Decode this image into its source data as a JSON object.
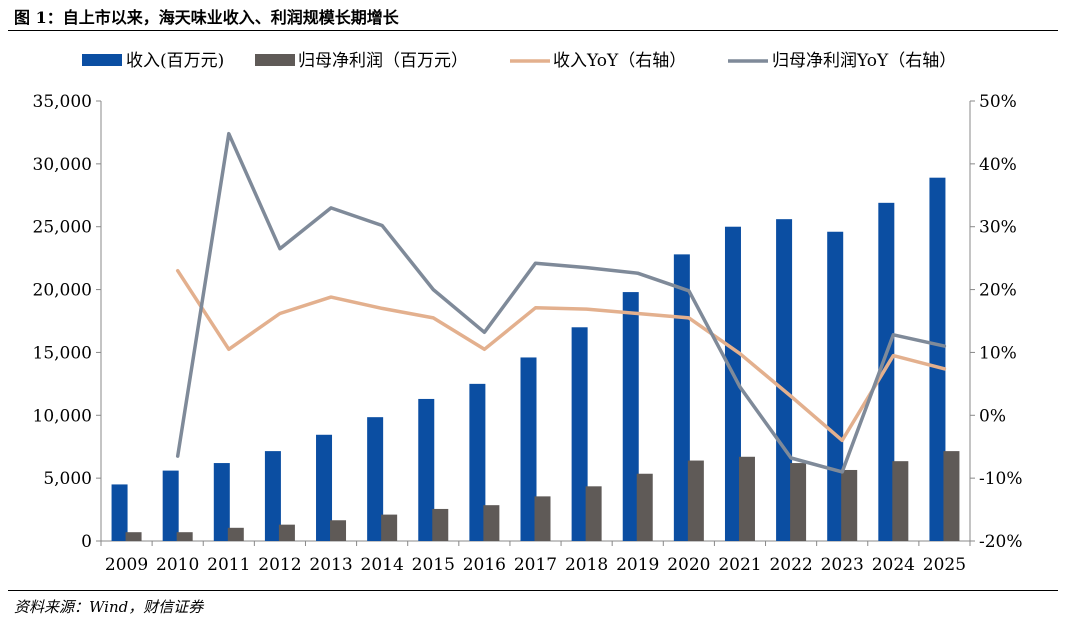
{
  "figure": {
    "title": "图 1：自上市以来，海天味业收入、利润规模长期增长",
    "source": "资料来源：Wind，财信证券"
  },
  "colors": {
    "revenue_bar": "#0b4ea2",
    "profit_bar": "#5f5a57",
    "revenue_yoy": "#e3b08e",
    "profit_yoy": "#7f8a99"
  },
  "chart_data": {
    "type": "bar",
    "categories": [
      "2009",
      "2010",
      "2011",
      "2012",
      "2013",
      "2014",
      "2015",
      "2016",
      "2017",
      "2018",
      "2019",
      "2020",
      "2021",
      "2022",
      "2023",
      "2024",
      "2025"
    ],
    "ylim": [
      0,
      35000
    ],
    "y2lim": [
      -0.2,
      0.5
    ],
    "yticks": [
      "0",
      "5,000",
      "10,000",
      "15,000",
      "20,000",
      "25,000",
      "30,000",
      "35,000"
    ],
    "y2ticks": [
      "-20%",
      "-10%",
      "0%",
      "10%",
      "20%",
      "30%",
      "40%",
      "50%"
    ],
    "legend_position": "top",
    "grid": false,
    "series": [
      {
        "name": "收入(百万元)",
        "kind": "bar",
        "axis": "left",
        "values": [
          4500,
          5600,
          6200,
          7150,
          8450,
          9850,
          11300,
          12500,
          14600,
          17000,
          19800,
          22800,
          25000,
          25600,
          24600,
          26900,
          28900
        ]
      },
      {
        "name": "归母净利润（百万元）",
        "kind": "bar",
        "axis": "left",
        "values": [
          700,
          700,
          1050,
          1300,
          1650,
          2100,
          2550,
          2850,
          3550,
          4350,
          5350,
          6400,
          6700,
          6200,
          5650,
          6350,
          7150
        ]
      },
      {
        "name": "收入YoY（右轴）",
        "kind": "line",
        "axis": "right",
        "values": [
          null,
          0.23,
          0.105,
          0.162,
          0.188,
          0.17,
          0.155,
          0.105,
          0.171,
          0.169,
          0.162,
          0.155,
          0.098,
          0.03,
          -0.04,
          0.095,
          0.074
        ]
      },
      {
        "name": "归母净利润YoY（右轴）",
        "kind": "line",
        "axis": "right",
        "values": [
          null,
          -0.065,
          0.448,
          0.265,
          0.33,
          0.302,
          0.2,
          0.132,
          0.242,
          0.235,
          0.226,
          0.198,
          0.045,
          -0.068,
          -0.09,
          0.128,
          0.11
        ]
      }
    ]
  }
}
